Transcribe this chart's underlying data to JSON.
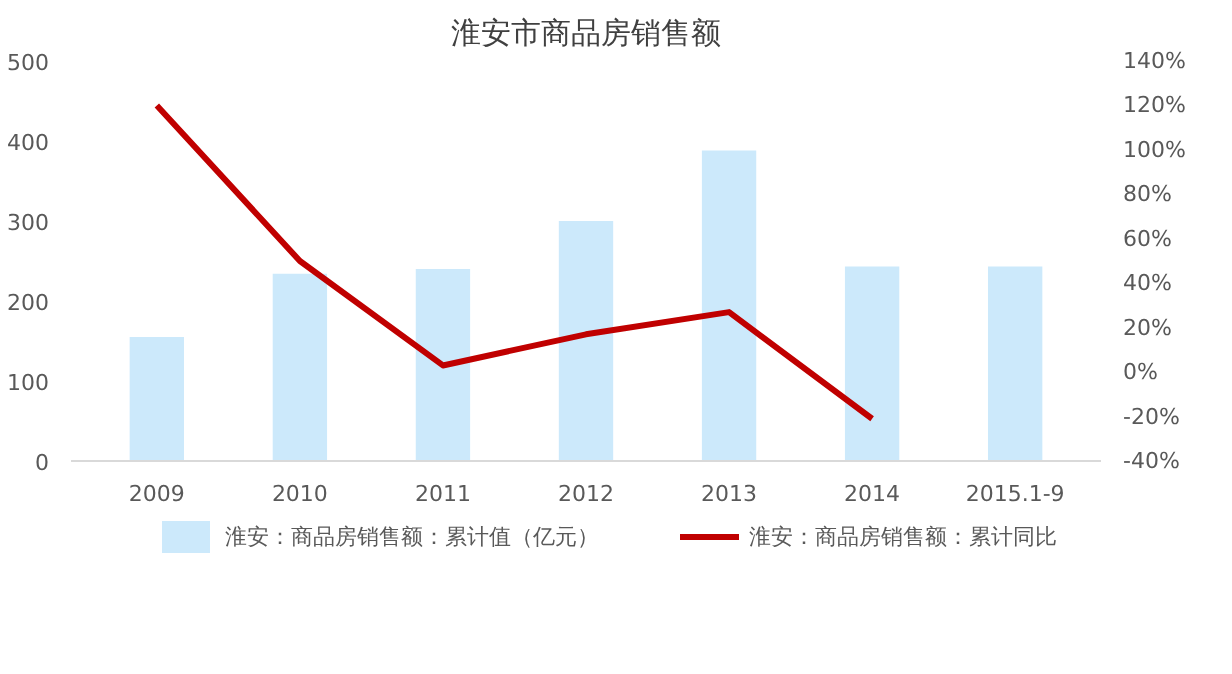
{
  "chart_data": {
    "type": "bar",
    "title": "淮安市商品房销售额",
    "categories": [
      "2009",
      "2010",
      "2011",
      "2012",
      "2013",
      "2014",
      "2015.1-9"
    ],
    "series": [
      {
        "name": "淮安：商品房销售额：累计值（亿元）",
        "type": "bar",
        "color": "#cce9fb",
        "values": [
          155,
          234,
          240,
          300,
          388,
          243,
          243
        ]
      },
      {
        "name": "淮安：商品房销售额：累计同比",
        "type": "line",
        "axis": "y2",
        "color": "#c00000",
        "values": [
          120,
          50,
          3,
          17,
          27,
          -21,
          null
        ]
      }
    ],
    "ylim": [
      0,
      500
    ],
    "yticks": [
      0,
      100,
      200,
      300,
      400,
      500
    ],
    "y2lim": [
      -40,
      140
    ],
    "y2ticks": [
      {
        "value": -40,
        "label": "-40%"
      },
      {
        "value": -20,
        "label": "-20%"
      },
      {
        "value": 0,
        "label": "0%"
      },
      {
        "value": 20,
        "label": "20%"
      },
      {
        "value": 40,
        "label": "40%"
      },
      {
        "value": 60,
        "label": "60%"
      },
      {
        "value": 80,
        "label": "80%"
      },
      {
        "value": 100,
        "label": "100%"
      },
      {
        "value": 120,
        "label": "120%"
      },
      {
        "value": 140,
        "label": "140%"
      }
    ],
    "grid": false,
    "legend": "bottom"
  }
}
